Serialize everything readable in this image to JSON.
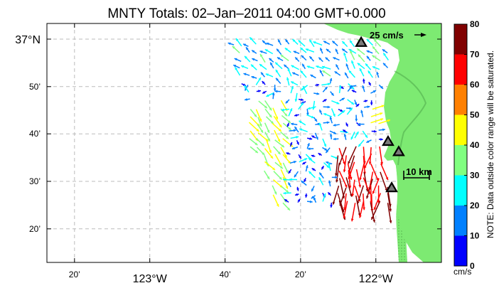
{
  "title": "MNTY Totals: 02–Jan–2011 04:00 GMT+0.000",
  "map": {
    "x_ticks": [
      {
        "lon": -123.333,
        "label": "20’",
        "major": false
      },
      {
        "lon": -123.0,
        "label": "123°W",
        "major": true
      },
      {
        "lon": -122.667,
        "label": "40’",
        "major": false
      },
      {
        "lon": -122.333,
        "label": "20’",
        "major": false
      },
      {
        "lon": -122.0,
        "label": "122°W",
        "major": true
      }
    ],
    "y_ticks": [
      {
        "lat": 37.0,
        "label": "37°N",
        "major": true
      },
      {
        "lat": 36.833,
        "label": "50’",
        "major": false
      },
      {
        "lat": 36.667,
        "label": "40’",
        "major": false
      },
      {
        "lat": 36.5,
        "label": "30’",
        "major": false
      },
      {
        "lat": 36.333,
        "label": "20’",
        "major": false
      }
    ],
    "lon_range": [
      -123.455,
      -121.71
    ],
    "lat_range": [
      36.215,
      37.055
    ],
    "land_color": "#7dea72",
    "grid_color": "#bbbbbb",
    "reference_arrow_label": "25 cm/s",
    "scale_bar_label": "10 km",
    "stations": [
      {
        "lon": -122.065,
        "lat": 36.988
      },
      {
        "lon": -121.946,
        "lat": 36.64
      },
      {
        "lon": -121.899,
        "lat": 36.604
      },
      {
        "lon": -121.93,
        "lat": 36.477
      }
    ]
  },
  "colorbar": {
    "min": 0,
    "max": 80,
    "ticks": [
      "0",
      "10",
      "20",
      "30",
      "40",
      "50",
      "60",
      "70",
      "80"
    ],
    "colors": [
      "#0000ff",
      "#0080ff",
      "#00ffff",
      "#80ff80",
      "#ffff00",
      "#ff8000",
      "#ff0000",
      "#800000"
    ],
    "unit": "cm/s",
    "note": "NOTE: Data outside color range will be saturated."
  }
}
